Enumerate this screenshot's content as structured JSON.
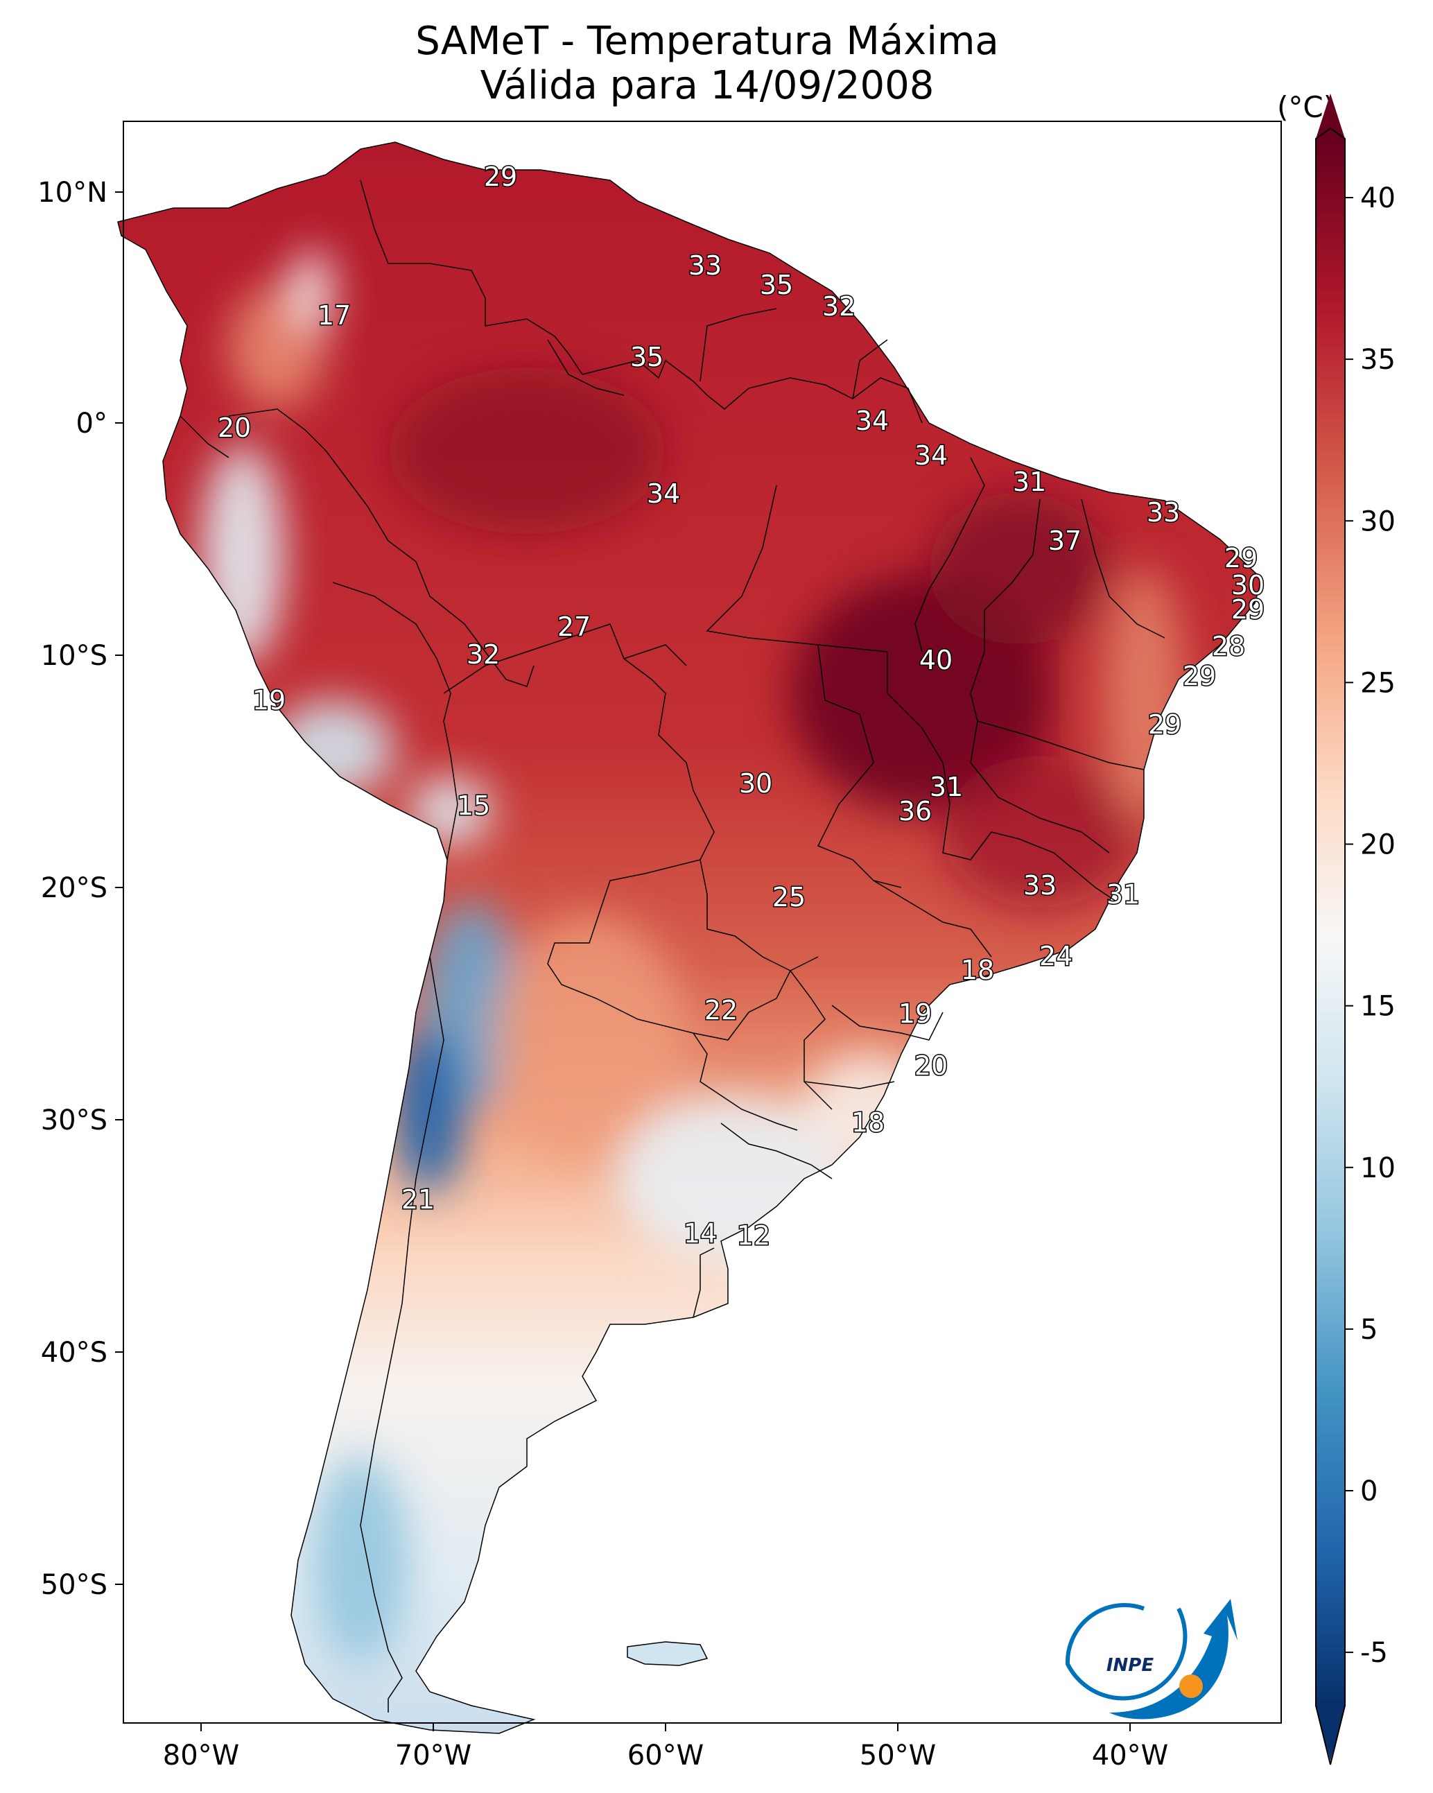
{
  "title": {
    "line1": "SAMeT - Temperatura Máxima",
    "line2": "Válida para 14/09/2008"
  },
  "colorbar": {
    "unit": "(°C)",
    "ticks": [
      "40",
      "35",
      "30",
      "25",
      "20",
      "15",
      "10",
      "5",
      "0",
      "-5"
    ],
    "min": -7,
    "max": 42,
    "colors": [
      "#08306b",
      "#2166ac",
      "#4393c3",
      "#92c5de",
      "#d1e5f0",
      "#f7f7f7",
      "#fddbc7",
      "#f4a582",
      "#d6604d",
      "#b2182b",
      "#67001f"
    ]
  },
  "axes": {
    "lon_labels": [
      "80°W",
      "70°W",
      "60°W",
      "50°W",
      "40°W"
    ],
    "lat_labels": [
      "10°N",
      "0°",
      "10°S",
      "20°S",
      "30°S",
      "40°S",
      "50°S"
    ]
  },
  "map_labels": [
    "29",
    "17",
    "33",
    "35",
    "32",
    "35",
    "20",
    "34",
    "34",
    "34",
    "31",
    "33",
    "37",
    "29",
    "30",
    "29",
    "27",
    "32",
    "40",
    "28",
    "29",
    "19",
    "29",
    "31",
    "30",
    "36",
    "15",
    "33",
    "31",
    "25",
    "24",
    "18",
    "22",
    "19",
    "20",
    "18",
    "21",
    "14",
    "12"
  ],
  "logo": {
    "text": "INPE",
    "colors": [
      "#0072bc",
      "#f7941d"
    ]
  }
}
